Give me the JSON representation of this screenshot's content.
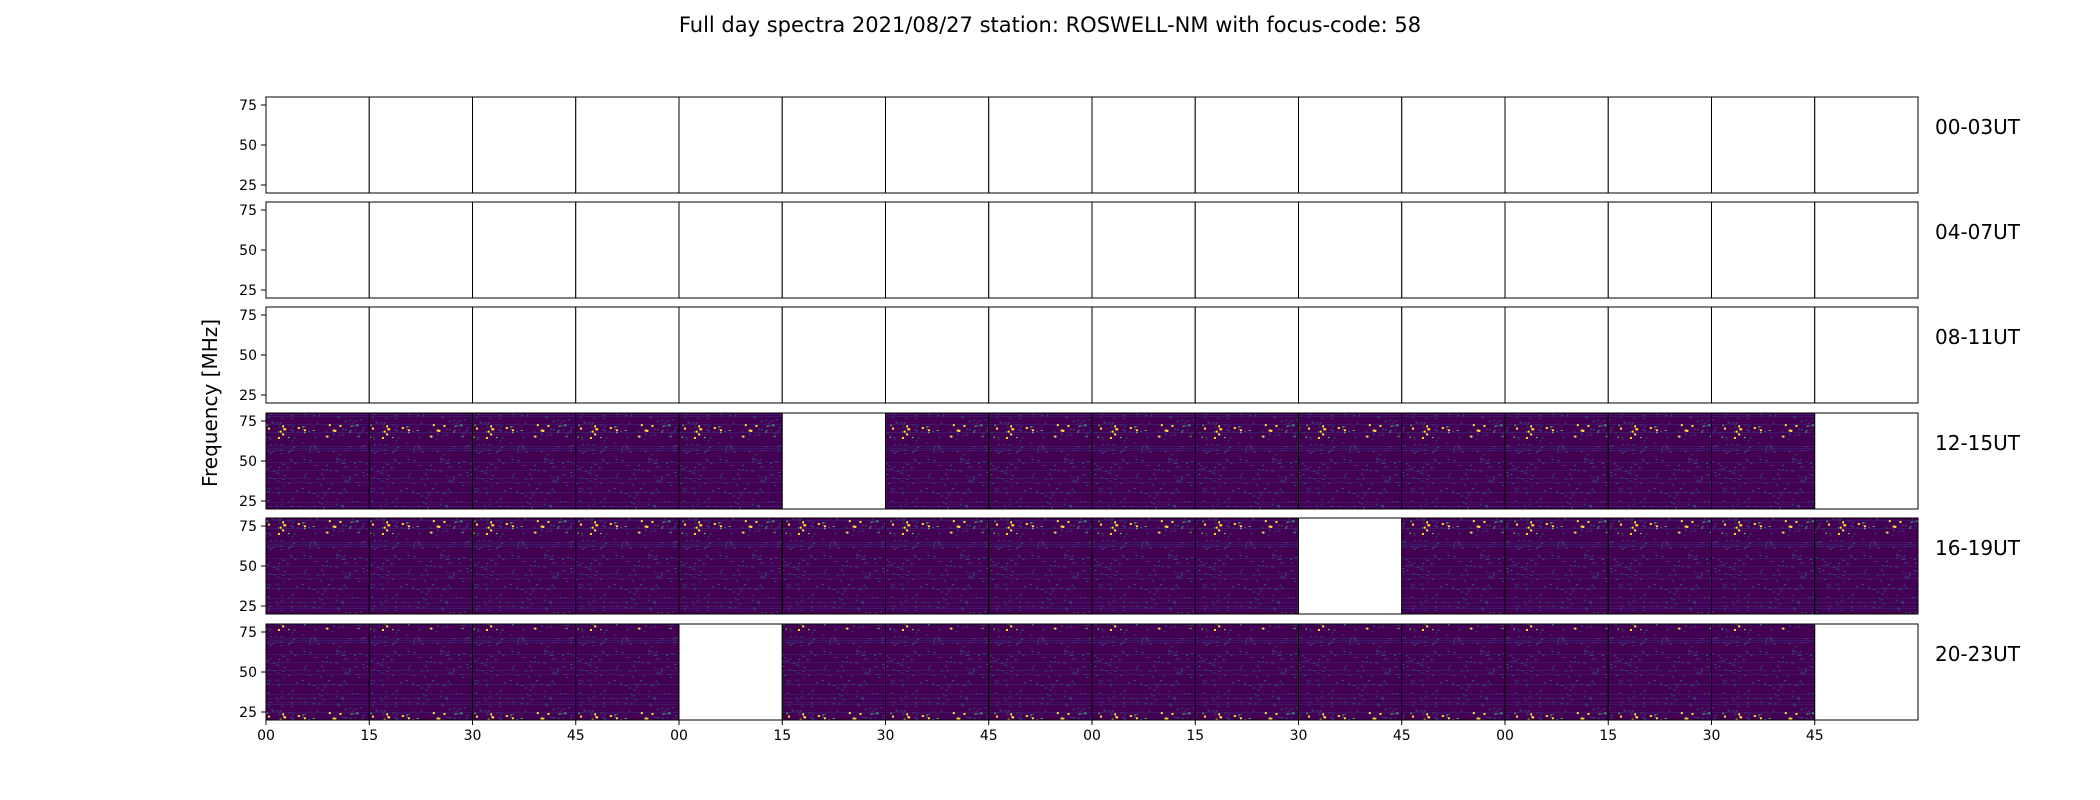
{
  "chart_data": {
    "type": "heatmap",
    "title": "Full day spectra 2021/08/27 station: ROSWELL-NM with focus-code: 58",
    "ylabel": "Frequency [MHz]",
    "xlabel": "",
    "y_ticks": [
      "75",
      "50",
      "25"
    ],
    "ylim": [
      20,
      80
    ],
    "x_tick_labels": [
      "00",
      "15",
      "30",
      "45",
      "00",
      "15",
      "30",
      "45",
      "00",
      "15",
      "30",
      "45",
      "00",
      "15",
      "30",
      "45"
    ],
    "panels_per_row": 16,
    "panel_minutes": 15,
    "colormap": "viridis",
    "colors": {
      "empty_panel": "#ffffff",
      "low": "#440154",
      "mid": "#2a788e",
      "high": "#fde725"
    },
    "rows": [
      {
        "label": "00-03UT",
        "has_data": [
          false,
          false,
          false,
          false,
          false,
          false,
          false,
          false,
          false,
          false,
          false,
          false,
          false,
          false,
          false,
          false
        ]
      },
      {
        "label": "04-07UT",
        "has_data": [
          false,
          false,
          false,
          false,
          false,
          false,
          false,
          false,
          false,
          false,
          false,
          false,
          false,
          false,
          false,
          false
        ]
      },
      {
        "label": "08-11UT",
        "has_data": [
          false,
          false,
          false,
          false,
          false,
          false,
          false,
          false,
          false,
          false,
          false,
          false,
          false,
          false,
          false,
          false
        ]
      },
      {
        "label": "12-15UT",
        "has_data": [
          true,
          true,
          true,
          true,
          true,
          false,
          true,
          true,
          true,
          true,
          true,
          true,
          true,
          true,
          true,
          false
        ]
      },
      {
        "label": "16-19UT",
        "has_data": [
          true,
          true,
          true,
          true,
          true,
          true,
          true,
          true,
          true,
          true,
          false,
          true,
          true,
          true,
          true,
          true
        ]
      },
      {
        "label": "20-23UT",
        "has_data": [
          true,
          true,
          true,
          true,
          false,
          true,
          true,
          true,
          true,
          true,
          true,
          true,
          true,
          true,
          true,
          false
        ]
      }
    ]
  }
}
